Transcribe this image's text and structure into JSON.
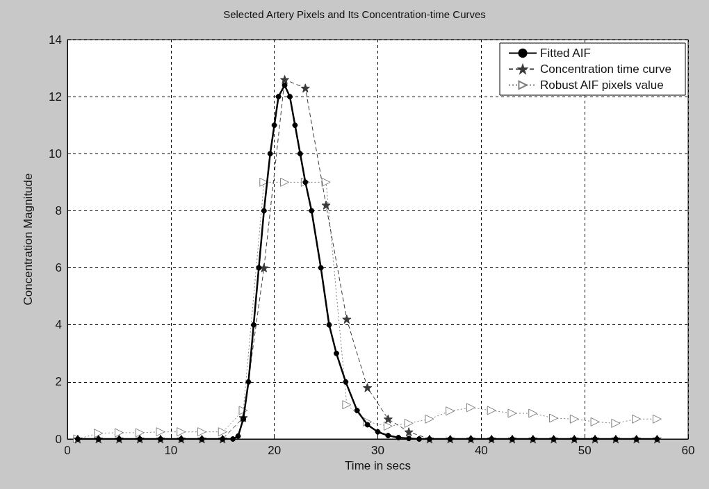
{
  "chart_data": {
    "type": "line",
    "title": "Selected Artery Pixels and Its Concentration-time Curves",
    "xlabel": "Time in secs",
    "ylabel": "Concentration Magnitude",
    "xlim": [
      0,
      60
    ],
    "xticks": [
      0,
      10,
      20,
      30,
      40,
      50,
      60
    ],
    "ylim": [
      0,
      14
    ],
    "yticks": [
      0,
      2,
      4,
      6,
      8,
      10,
      12,
      14
    ],
    "grid": true,
    "legend": "top right",
    "series": [
      {
        "name": "Fitted AIF",
        "color": "#000000",
        "marker": "circle",
        "line_style": "solid",
        "x": [
          1,
          3,
          5,
          7,
          9,
          11,
          13,
          15,
          16,
          16.5,
          17,
          17.5,
          18,
          18.5,
          19,
          19.6,
          20,
          20.4,
          21,
          21.5,
          22,
          22.5,
          23,
          23.6,
          24.5,
          25.3,
          26,
          26.9,
          28,
          29,
          30,
          31,
          32,
          33,
          34,
          35,
          37,
          39,
          41,
          43,
          45,
          47,
          49,
          51,
          53,
          55,
          57
        ],
        "values": [
          0,
          0,
          0,
          0,
          0,
          0,
          0,
          0,
          0,
          0.1,
          0.7,
          2,
          4,
          6,
          8,
          10,
          11,
          12,
          12.4,
          12,
          11,
          10,
          9,
          8,
          6,
          4,
          3,
          2,
          1,
          0.5,
          0.25,
          0.12,
          0.05,
          0.02,
          0,
          0,
          0,
          0,
          0,
          0,
          0,
          0,
          0,
          0,
          0,
          0,
          0
        ]
      },
      {
        "name": "Concentration time curve",
        "color": "#3a3a3a",
        "marker": "star",
        "line_style": "dashed",
        "x": [
          1,
          3,
          5,
          7,
          9,
          11,
          13,
          15,
          17,
          19,
          21,
          23,
          25,
          27,
          29,
          31,
          33,
          35,
          37,
          39,
          41,
          43,
          45,
          47,
          49,
          51,
          53,
          55,
          57
        ],
        "values": [
          0,
          0,
          0,
          0,
          0,
          0,
          0,
          0,
          0.75,
          6,
          12.6,
          12.3,
          8.2,
          4.2,
          1.8,
          0.7,
          0.25,
          0,
          0,
          0,
          0,
          0,
          0,
          0,
          0,
          0,
          0,
          0,
          0
        ]
      },
      {
        "name": "Robust AIF pixels value",
        "color": "#808080",
        "marker": "triangle",
        "line_style": "dotted",
        "x": [
          1,
          3,
          5,
          7,
          9,
          11,
          13,
          15,
          17,
          19,
          21,
          23,
          25,
          27,
          29,
          31,
          33,
          35,
          37,
          39,
          41,
          43,
          45,
          47,
          49,
          51,
          53,
          55,
          57
        ],
        "values": [
          0,
          0.2,
          0.22,
          0.22,
          0.25,
          0.25,
          0.25,
          0.25,
          1,
          9,
          9,
          9,
          9,
          1.2,
          0.6,
          0.45,
          0.55,
          0.7,
          0.98,
          1.1,
          1,
          0.9,
          0.9,
          0.73,
          0.7,
          0.6,
          0.55,
          0.7,
          0.7
        ]
      }
    ]
  }
}
